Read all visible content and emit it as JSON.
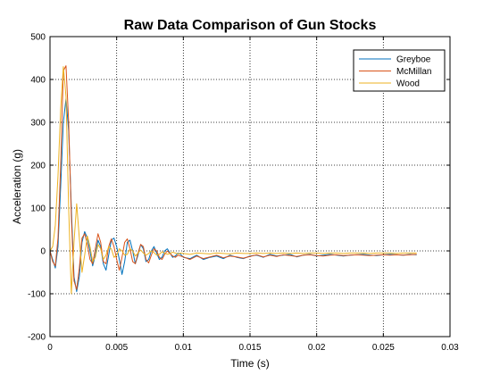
{
  "chart_data": {
    "type": "line",
    "title": "Raw Data Comparison of Gun Stocks",
    "xlabel": "Time (s)",
    "ylabel": "Acceleration (g)",
    "xlim": [
      0,
      0.03
    ],
    "ylim": [
      -200,
      500
    ],
    "xticks": [
      0,
      0.005,
      0.01,
      0.015,
      0.02,
      0.025,
      0.03
    ],
    "xtick_labels": [
      "0",
      "0.005",
      "0.01",
      "0.015",
      "0.02",
      "0.025",
      "0.03"
    ],
    "yticks": [
      -200,
      -100,
      0,
      100,
      200,
      300,
      400,
      500
    ],
    "ytick_labels": [
      "-200",
      "-100",
      "0",
      "100",
      "200",
      "300",
      "400",
      "500"
    ],
    "grid": true,
    "legend_position": "top-right",
    "series": [
      {
        "name": "Greyboe",
        "color": "#0072BD",
        "x": [
          0,
          0.0002,
          0.0004,
          0.0006,
          0.0008,
          0.001,
          0.0012,
          0.0014,
          0.0016,
          0.0018,
          0.002,
          0.0022,
          0.0024,
          0.0026,
          0.0028,
          0.003,
          0.0032,
          0.0034,
          0.0036,
          0.0038,
          0.004,
          0.0042,
          0.0044,
          0.0046,
          0.0048,
          0.005,
          0.0052,
          0.0054,
          0.0056,
          0.0058,
          0.006,
          0.0062,
          0.0064,
          0.0066,
          0.0068,
          0.007,
          0.0072,
          0.0074,
          0.0076,
          0.0078,
          0.008,
          0.0082,
          0.0084,
          0.0086,
          0.0088,
          0.009,
          0.0092,
          0.0094,
          0.0096,
          0.0098,
          0.01,
          0.0105,
          0.011,
          0.0115,
          0.012,
          0.0125,
          0.013,
          0.0135,
          0.014,
          0.0145,
          0.015,
          0.0155,
          0.016,
          0.0165,
          0.017,
          0.0175,
          0.018,
          0.0185,
          0.019,
          0.0195,
          0.02,
          0.0205,
          0.021,
          0.0215,
          0.022,
          0.0225,
          0.023,
          0.0235,
          0.024,
          0.0245,
          0.025,
          0.0255,
          0.026,
          0.0265,
          0.027,
          0.0275
        ],
        "y": [
          0,
          -20,
          -40,
          10,
          150,
          300,
          355,
          280,
          100,
          -60,
          -95,
          -60,
          20,
          45,
          30,
          0,
          -35,
          -10,
          25,
          10,
          -30,
          -45,
          -10,
          25,
          30,
          10,
          -20,
          -55,
          -25,
          20,
          25,
          0,
          -30,
          -10,
          15,
          5,
          -25,
          -20,
          0,
          10,
          -5,
          -20,
          -15,
          0,
          5,
          -5,
          -15,
          -12,
          -5,
          -8,
          -15,
          -18,
          -10,
          -20,
          -15,
          -12,
          -18,
          -10,
          -15,
          -18,
          -12,
          -10,
          -15,
          -8,
          -12,
          -10,
          -8,
          -14,
          -10,
          -8,
          -12,
          -10,
          -8,
          -10,
          -12,
          -10,
          -9,
          -8,
          -10,
          -11,
          -9,
          -8,
          -9,
          -10,
          -8,
          -9
        ]
      },
      {
        "name": "McMillan",
        "color": "#D95319",
        "x": [
          0,
          0.0002,
          0.0004,
          0.0006,
          0.0008,
          0.001,
          0.0012,
          0.0014,
          0.0016,
          0.0018,
          0.002,
          0.0022,
          0.0024,
          0.0026,
          0.0028,
          0.003,
          0.0032,
          0.0034,
          0.0036,
          0.0038,
          0.004,
          0.0042,
          0.0044,
          0.0046,
          0.0048,
          0.005,
          0.0052,
          0.0054,
          0.0056,
          0.0058,
          0.006,
          0.0062,
          0.0064,
          0.0066,
          0.0068,
          0.007,
          0.0072,
          0.0074,
          0.0076,
          0.0078,
          0.008,
          0.0082,
          0.0084,
          0.0086,
          0.0088,
          0.009,
          0.0092,
          0.0094,
          0.0096,
          0.0098,
          0.01,
          0.0105,
          0.011,
          0.0115,
          0.012,
          0.0125,
          0.013,
          0.0135,
          0.014,
          0.0145,
          0.015,
          0.0155,
          0.016,
          0.0165,
          0.017,
          0.0175,
          0.018,
          0.0185,
          0.019,
          0.0195,
          0.02,
          0.0205,
          0.021,
          0.0215,
          0.022,
          0.0225,
          0.023,
          0.0235,
          0.024,
          0.0245,
          0.025,
          0.0255,
          0.026,
          0.0265,
          0.027,
          0.0275
        ],
        "y": [
          0,
          -25,
          -35,
          30,
          200,
          420,
          432,
          300,
          80,
          -70,
          -90,
          -40,
          30,
          40,
          15,
          -20,
          -30,
          5,
          40,
          20,
          -25,
          -30,
          10,
          28,
          10,
          -20,
          -45,
          -15,
          20,
          28,
          5,
          -25,
          -30,
          -5,
          15,
          10,
          -20,
          -28,
          -10,
          5,
          0,
          -15,
          -20,
          -8,
          0,
          -6,
          -12,
          -15,
          -10,
          -12,
          -14,
          -20,
          -12,
          -18,
          -14,
          -10,
          -16,
          -12,
          -14,
          -17,
          -13,
          -9,
          -14,
          -10,
          -13,
          -9,
          -11,
          -13,
          -10,
          -9,
          -11,
          -12,
          -10,
          -9,
          -11,
          -10,
          -9,
          -10,
          -11,
          -10,
          -9,
          -10,
          -9,
          -10,
          -9,
          -8
        ]
      },
      {
        "name": "Wood",
        "color": "#EDB120",
        "x": [
          0,
          0.0002,
          0.0004,
          0.0006,
          0.0008,
          0.001,
          0.0012,
          0.0014,
          0.0016,
          0.0018,
          0.002,
          0.0022,
          0.0024,
          0.0026,
          0.0028,
          0.003,
          0.0032,
          0.0034,
          0.0036,
          0.0038,
          0.004,
          0.0042,
          0.0044,
          0.0046,
          0.0048,
          0.005,
          0.0052,
          0.0054,
          0.0056,
          0.0058,
          0.006,
          0.0062,
          0.0064,
          0.0066,
          0.0068,
          0.007,
          0.0072,
          0.0074,
          0.0076,
          0.0078,
          0.008,
          0.0082,
          0.0084,
          0.0086,
          0.0088,
          0.009,
          0.0092,
          0.0094,
          0.0096,
          0.0098,
          0.01,
          0.0105,
          0.011,
          0.0115,
          0.012,
          0.0125,
          0.013,
          0.0135,
          0.014,
          0.0145,
          0.015,
          0.0155,
          0.016,
          0.0165,
          0.017,
          0.0175,
          0.018,
          0.0185,
          0.019,
          0.0195,
          0.02,
          0.0205,
          0.021,
          0.0215,
          0.022,
          0.0225,
          0.023,
          0.0235,
          0.024,
          0.0245,
          0.025,
          0.0255,
          0.026,
          0.0265,
          0.027,
          0.0275
        ],
        "y": [
          0,
          10,
          60,
          175,
          330,
          430,
          360,
          100,
          -100,
          20,
          110,
          30,
          -50,
          -10,
          35,
          10,
          -25,
          -15,
          15,
          5,
          -20,
          -10,
          10,
          5,
          -15,
          -10,
          5,
          0,
          -10,
          -8,
          5,
          0,
          -12,
          -5,
          2,
          -5,
          -10,
          -6,
          0,
          -4,
          -10,
          -8,
          -2,
          -5,
          -8,
          -6,
          -3,
          -5,
          -7,
          -5,
          -6,
          -8,
          -5,
          -6,
          -7,
          -5,
          -6,
          -7,
          -5,
          -6,
          -6,
          -5,
          -6,
          -5,
          -6,
          -5,
          -6,
          -5,
          -6,
          -5,
          -5,
          -6,
          -5,
          -5,
          -6,
          -5,
          -5,
          -5,
          -6,
          -5,
          -5,
          -5,
          -6,
          -5,
          -5,
          -5
        ]
      }
    ]
  }
}
